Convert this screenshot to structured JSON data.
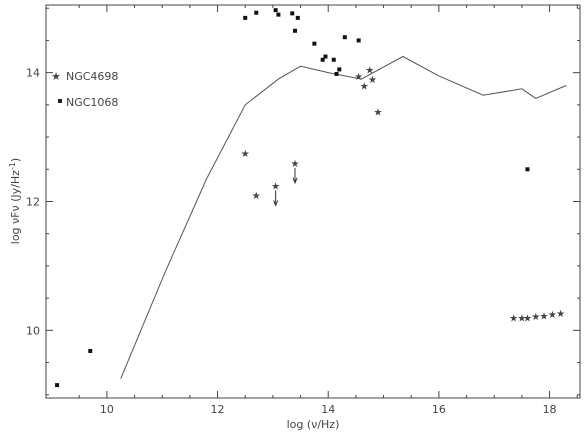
{
  "chart_data": {
    "type": "scatter",
    "xlabel": "log (ν/Hz)",
    "ylabel": "log νFν (Jy/Hz",
    "ylabel_sup": "-1",
    "ylabel_close": ")",
    "xlim": [
      8.9,
      18.55
    ],
    "ylim": [
      8.95,
      15.05
    ],
    "x_ticks": [
      10,
      12,
      14,
      16,
      18
    ],
    "y_ticks": [
      10,
      12,
      14
    ],
    "x_tick_labels": [
      "10",
      "12",
      "14",
      "16",
      "18"
    ],
    "y_tick_labels": [
      "10",
      "12",
      "14"
    ],
    "legend_position": "left",
    "series": [
      {
        "name": "NGC4698",
        "marker": "star",
        "points": [
          [
            12.5,
            12.75
          ],
          [
            12.7,
            12.1
          ],
          [
            14.55,
            13.95
          ],
          [
            14.65,
            13.8
          ],
          [
            14.75,
            14.05
          ],
          [
            14.8,
            13.9
          ],
          [
            14.9,
            13.4
          ],
          [
            17.35,
            10.2
          ],
          [
            17.5,
            10.2
          ],
          [
            17.6,
            10.2
          ],
          [
            17.75,
            10.22
          ],
          [
            17.9,
            10.23
          ],
          [
            18.05,
            10.25
          ],
          [
            18.2,
            10.27
          ]
        ],
        "upper_limits": [
          [
            13.05,
            12.25
          ],
          [
            13.4,
            12.6
          ]
        ]
      },
      {
        "name": "NGC1068",
        "marker": "square",
        "points": [
          [
            9.1,
            9.15
          ],
          [
            9.7,
            9.68
          ],
          [
            12.5,
            14.85
          ],
          [
            12.7,
            14.93
          ],
          [
            13.05,
            14.97
          ],
          [
            13.1,
            14.9
          ],
          [
            13.35,
            14.92
          ],
          [
            13.45,
            14.85
          ],
          [
            13.4,
            14.65
          ],
          [
            13.75,
            14.45
          ],
          [
            13.9,
            14.2
          ],
          [
            13.95,
            14.25
          ],
          [
            14.1,
            14.2
          ],
          [
            14.2,
            14.05
          ],
          [
            14.3,
            14.55
          ],
          [
            14.55,
            14.5
          ],
          [
            14.15,
            13.98
          ],
          [
            17.6,
            12.5
          ]
        ]
      },
      {
        "name": "",
        "marker": "line",
        "points": [
          [
            10.25,
            9.25
          ],
          [
            11.05,
            10.9
          ],
          [
            11.8,
            12.35
          ],
          [
            12.5,
            13.5
          ],
          [
            13.1,
            13.9
          ],
          [
            13.5,
            14.1
          ],
          [
            14.0,
            14.0
          ],
          [
            14.6,
            13.9
          ],
          [
            15.35,
            14.25
          ],
          [
            16.0,
            13.95
          ],
          [
            16.8,
            13.65
          ],
          [
            17.5,
            13.75
          ],
          [
            17.75,
            13.6
          ],
          [
            18.3,
            13.8
          ]
        ]
      }
    ]
  }
}
